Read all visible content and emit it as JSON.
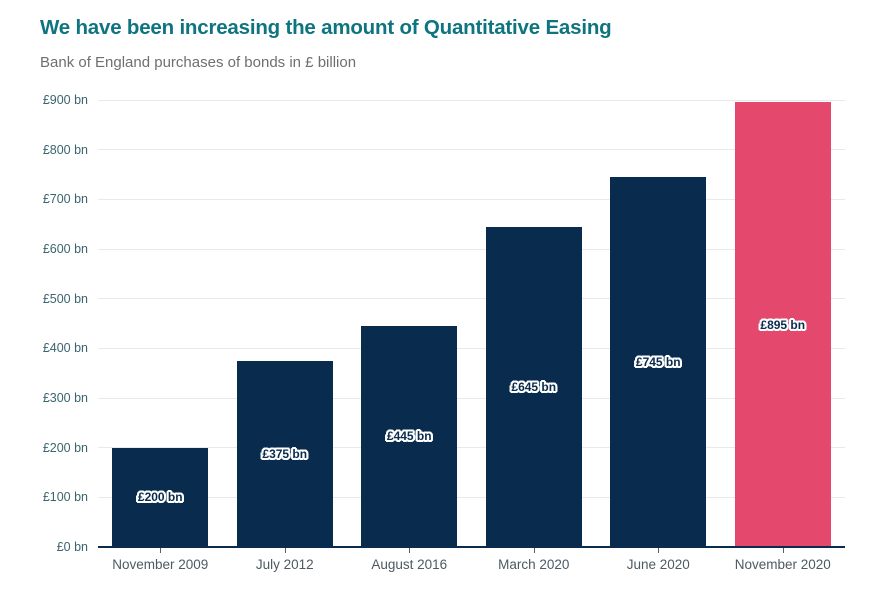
{
  "header": {
    "title": "We have been increasing the amount of Quantitative Easing",
    "subtitle": "Bank of England purchases of bonds in £ billion"
  },
  "colors": {
    "title": "#0e747f",
    "subtitle": "#6f6f6f",
    "bar_default": "#092b4d",
    "bar_highlight": "#e5486d",
    "gridline": "#e9e9e9",
    "baseline": "#092b4d",
    "y_label": "#3a656e",
    "x_label": "#4c5a61",
    "bar_label_text": "#092b4d",
    "bar_label_outline": "#ffffff"
  },
  "chart_data": {
    "type": "bar",
    "title": "We have been increasing the amount of Quantitative Easing",
    "subtitle": "Bank of England purchases of bonds in £ billion",
    "categories": [
      "November 2009",
      "July 2012",
      "August 2016",
      "March 2020",
      "June 2020",
      "November 2020"
    ],
    "values": [
      200,
      375,
      445,
      645,
      745,
      895
    ],
    "bar_labels": [
      "£200 bn",
      "£375 bn",
      "£445 bn",
      "£645 bn",
      "£745 bn",
      "£895 bn"
    ],
    "highlight_index": 5,
    "ylabel_format": "£{value} bn",
    "ylim": [
      0,
      900
    ],
    "ytick_step": 100,
    "ytick_labels": [
      "£0 bn",
      "£100 bn",
      "£200 bn",
      "£300 bn",
      "£400 bn",
      "£500 bn",
      "£600 bn",
      "£700 bn",
      "£800 bn",
      "£900 bn"
    ],
    "grid": true,
    "legend": "none"
  }
}
